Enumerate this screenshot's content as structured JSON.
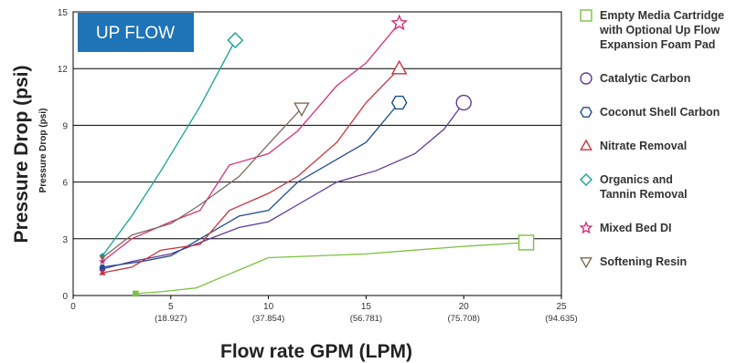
{
  "chart_data": {
    "type": "line",
    "title": "",
    "badge": "UP FLOW",
    "ylabel": "Pressure Drop (psi)",
    "ylabel_secondary": "Pressure Drop (psi)",
    "xlabel": "Flow rate GPM (LPM)",
    "xlim": [
      0,
      25
    ],
    "ylim": [
      0,
      15
    ],
    "grid": "horizontal",
    "legend_position": "right",
    "x_ticks": [
      {
        "value": 0,
        "label": "0",
        "sub": ""
      },
      {
        "value": 5,
        "label": "5",
        "sub": "(18.927)"
      },
      {
        "value": 10,
        "label": "10",
        "sub": "(37.854)"
      },
      {
        "value": 15,
        "label": "15",
        "sub": "(56.781)"
      },
      {
        "value": 20,
        "label": "20",
        "sub": "(75.708)"
      },
      {
        "value": 25,
        "label": "25",
        "sub": "(94.635)"
      }
    ],
    "y_ticks": [
      {
        "value": 0,
        "label": "0"
      },
      {
        "value": 3,
        "label": "3"
      },
      {
        "value": 6,
        "label": "6"
      },
      {
        "value": 9,
        "label": "9"
      },
      {
        "value": 12,
        "label": "12"
      },
      {
        "value": 15,
        "label": "15"
      }
    ],
    "series": [
      {
        "name": "Empty Media Cartridge with Optional Up Flow Expansion Foam Pad",
        "legend_lines": [
          "Empty Media Cartridge",
          "with Optional Up Flow",
          "Expansion Foam Pad"
        ],
        "color": "#7dc142",
        "marker": "square",
        "x": [
          3.2,
          4.5,
          6.3,
          10,
          12.5,
          15,
          17.5,
          20,
          23.2
        ],
        "y": [
          0.1,
          0.2,
          0.4,
          2.0,
          2.1,
          2.2,
          2.4,
          2.6,
          2.8
        ]
      },
      {
        "name": "Catalytic Carbon",
        "legend_lines": [
          "Catalytic Carbon"
        ],
        "color": "#5e3a96",
        "marker": "circle",
        "x": [
          1.5,
          3.0,
          5.0,
          6.5,
          8.5,
          10,
          11.5,
          13.5,
          15.5,
          17.5,
          19.0,
          20.0
        ],
        "y": [
          1.4,
          1.8,
          2.2,
          2.8,
          3.6,
          3.9,
          4.8,
          6.0,
          6.6,
          7.5,
          8.8,
          10.2
        ]
      },
      {
        "name": "Coconut Shell Carbon",
        "legend_lines": [
          "Coconut Shell Carbon"
        ],
        "color": "#1e4e8c",
        "marker": "hexagon",
        "x": [
          1.5,
          3.5,
          5.0,
          6.5,
          8.5,
          10,
          11.5,
          13.5,
          15.0,
          16.7
        ],
        "y": [
          1.5,
          1.8,
          2.1,
          3.0,
          4.2,
          4.5,
          6.0,
          7.2,
          8.1,
          10.2
        ]
      },
      {
        "name": "Nitrate Removal",
        "legend_lines": [
          "Nitrate Removal"
        ],
        "color": "#c8323c",
        "marker": "triangle-up",
        "x": [
          1.5,
          3.0,
          4.5,
          6.5,
          8.0,
          10,
          11.5,
          13.5,
          15.0,
          16.7
        ],
        "y": [
          1.2,
          1.5,
          2.4,
          2.7,
          4.5,
          5.4,
          6.3,
          8.1,
          10.2,
          12.0
        ]
      },
      {
        "name": "Organics and Tannin Removal",
        "legend_lines": [
          "Organics and",
          "Tannin Removal"
        ],
        "color": "#17a393",
        "marker": "diamond",
        "x": [
          1.5,
          3.0,
          4.5,
          6.5,
          8.3
        ],
        "y": [
          2.1,
          4.2,
          6.6,
          10.0,
          13.5
        ]
      },
      {
        "name": "Mixed Bed DI",
        "legend_lines": [
          "Mixed Bed DI"
        ],
        "color": "#d6317a",
        "marker": "star",
        "x": [
          1.5,
          3.0,
          5.0,
          6.5,
          8.0,
          10,
          11.5,
          13.5,
          15.0,
          16.7
        ],
        "y": [
          1.8,
          3.0,
          3.9,
          4.5,
          6.9,
          7.5,
          8.7,
          11.1,
          12.3,
          14.4
        ]
      },
      {
        "name": "Softening Resin",
        "legend_lines": [
          "Softening Resin"
        ],
        "color": "#7a6a5a",
        "marker": "triangle-down",
        "x": [
          1.5,
          3.0,
          5.0,
          6.5,
          8.5,
          10,
          11.7
        ],
        "y": [
          2.0,
          3.2,
          3.8,
          4.8,
          6.3,
          8.0,
          9.9
        ]
      }
    ]
  }
}
